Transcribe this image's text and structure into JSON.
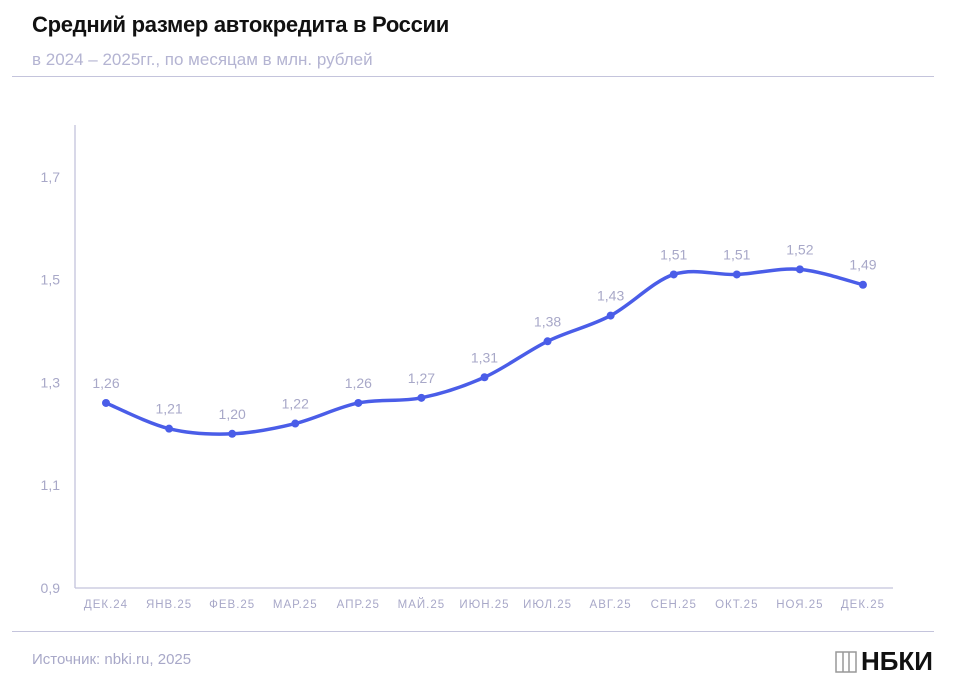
{
  "title": "Средний размер автокредита в России",
  "subtitle": "в 2024 – 2025гг., по месяцам в млн. рублей",
  "source": "Источник: nbki.ru, 2025",
  "logo": "НБКИ",
  "chart_data": {
    "type": "line",
    "title": "Средний размер автокредита в России",
    "subtitle": "в 2024 – 2025гг., по месяцам в млн. рублей",
    "categories": [
      "ДЕК.24",
      "ЯНВ.25",
      "ФЕВ.25",
      "МАР.25",
      "АПР.25",
      "МАЙ.25",
      "ИЮН.25",
      "ИЮЛ.25",
      "АВГ.25",
      "СЕН.25",
      "ОКТ.25",
      "НОЯ.25",
      "ДЕК.25"
    ],
    "values": [
      1.26,
      1.21,
      1.2,
      1.22,
      1.26,
      1.27,
      1.31,
      1.38,
      1.43,
      1.51,
      1.51,
      1.52,
      1.49
    ],
    "data_labels": [
      "1,26",
      "1,21",
      "1,20",
      "1,22",
      "1,26",
      "1,27",
      "1,31",
      "1,38",
      "1,43",
      "1,51",
      "1,51",
      "1,52",
      "1,49"
    ],
    "yticks": [
      "0,9",
      "1,1",
      "1,3",
      "1,5",
      "1,7"
    ],
    "ytick_values": [
      0.9,
      1.1,
      1.3,
      1.5,
      1.7
    ],
    "ylim": [
      0.9,
      1.8
    ],
    "grid": false,
    "line_color": "#4a5de8"
  }
}
